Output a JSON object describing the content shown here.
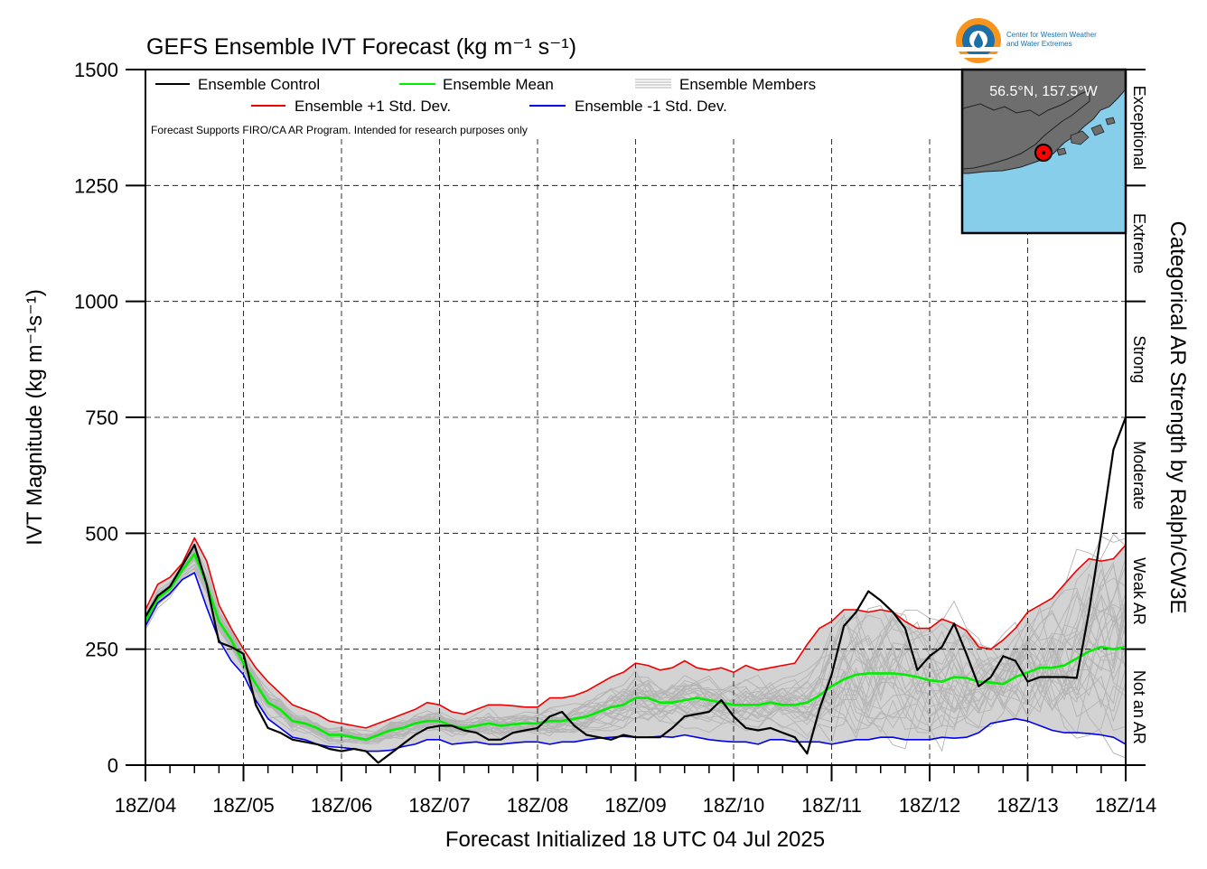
{
  "logo": {
    "line1": "Center for Western Weather",
    "line2": "and Water Extremes"
  },
  "chart_data": {
    "type": "line",
    "title": "GEFS Ensemble IVT Forecast (kg m⁻¹ s⁻¹)",
    "ylabel": "IVT Magnitude (kg m⁻¹s⁻¹)",
    "xlabel": "Forecast Initialized 18 UTC 04 Jul 2025",
    "right_label": "Categorical AR Strength by Ralph/CW3E",
    "disclaimer": "Forecast Supports FIRO/CA AR Program. Intended for research purposes only",
    "inset_label": "56.5°N, 157.5°W",
    "ylim": [
      0,
      1500
    ],
    "xlim": [
      0,
      240
    ],
    "yticks": [
      0,
      250,
      500,
      750,
      1000,
      1250,
      1500
    ],
    "xticks": [
      {
        "x": 0,
        "label": "18Z/04"
      },
      {
        "x": 24,
        "label": "18Z/05"
      },
      {
        "x": 48,
        "label": "18Z/06"
      },
      {
        "x": 72,
        "label": "18Z/07"
      },
      {
        "x": 96,
        "label": "18Z/08"
      },
      {
        "x": 120,
        "label": "18Z/09"
      },
      {
        "x": 144,
        "label": "18Z/10"
      },
      {
        "x": 168,
        "label": "18Z/11"
      },
      {
        "x": 192,
        "label": "18Z/12"
      },
      {
        "x": 216,
        "label": "18Z/13"
      },
      {
        "x": 240,
        "label": "18Z/14"
      }
    ],
    "categories_right": [
      {
        "from": 0,
        "to": 250,
        "label": "Not an AR"
      },
      {
        "from": 250,
        "to": 500,
        "label": "Weak AR"
      },
      {
        "from": 500,
        "to": 750,
        "label": "Moderate"
      },
      {
        "from": 750,
        "to": 1000,
        "label": "Strong"
      },
      {
        "from": 1000,
        "to": 1250,
        "label": "Extreme"
      },
      {
        "from": 1250,
        "to": 1500,
        "label": "Exceptional"
      }
    ],
    "legend": [
      {
        "name": "Ensemble Control",
        "color": "#000000",
        "style": "line"
      },
      {
        "name": "Ensemble Mean",
        "color": "#00ee00",
        "style": "line"
      },
      {
        "name": "Ensemble Members",
        "color": "#b0b0b0",
        "style": "multiline"
      },
      {
        "name": "Ensemble +1 Std. Dev.",
        "color": "#ee0000",
        "style": "line"
      },
      {
        "name": "Ensemble -1 Std. Dev.",
        "color": "#0000ee",
        "style": "line"
      }
    ],
    "x": [
      0,
      3,
      6,
      9,
      12,
      15,
      18,
      21,
      24,
      27,
      30,
      33,
      36,
      39,
      42,
      45,
      48,
      51,
      54,
      57,
      60,
      63,
      66,
      69,
      72,
      75,
      78,
      81,
      84,
      87,
      90,
      93,
      96,
      99,
      102,
      105,
      108,
      111,
      114,
      117,
      120,
      123,
      126,
      129,
      132,
      135,
      138,
      141,
      144,
      147,
      150,
      153,
      156,
      159,
      162,
      165,
      168,
      171,
      174,
      177,
      180,
      183,
      186,
      189,
      192,
      195,
      198,
      201,
      204,
      207,
      210,
      213,
      216,
      219,
      222,
      225,
      228,
      231,
      234,
      237,
      240
    ],
    "series": [
      {
        "name": "Ensemble +1 Std. Dev.",
        "color": "#ee0000",
        "values": [
          335,
          390,
          405,
          435,
          490,
          440,
          345,
          295,
          250,
          210,
          180,
          155,
          130,
          120,
          110,
          95,
          90,
          85,
          80,
          90,
          100,
          110,
          120,
          135,
          130,
          115,
          110,
          120,
          130,
          130,
          128,
          125,
          125,
          145,
          145,
          150,
          160,
          175,
          190,
          200,
          220,
          215,
          205,
          210,
          225,
          210,
          205,
          210,
          200,
          215,
          205,
          210,
          215,
          220,
          260,
          295,
          310,
          335,
          335,
          330,
          335,
          330,
          310,
          295,
          295,
          315,
          305,
          290,
          255,
          250,
          270,
          295,
          330,
          345,
          360,
          390,
          420,
          445,
          440,
          445,
          475
        ]
      },
      {
        "name": "Ensemble Mean",
        "color": "#00ee00",
        "values": [
          310,
          360,
          380,
          420,
          455,
          390,
          310,
          270,
          220,
          175,
          135,
          120,
          95,
          90,
          80,
          65,
          65,
          60,
          55,
          65,
          75,
          80,
          90,
          95,
          95,
          85,
          80,
          85,
          90,
          85,
          88,
          90,
          90,
          95,
          95,
          100,
          105,
          115,
          125,
          130,
          145,
          145,
          135,
          135,
          140,
          145,
          140,
          135,
          130,
          130,
          130,
          135,
          130,
          130,
          135,
          150,
          170,
          185,
          195,
          198,
          198,
          198,
          195,
          190,
          183,
          180,
          190,
          188,
          180,
          178,
          175,
          190,
          200,
          210,
          210,
          215,
          230,
          245,
          255,
          250,
          255
        ]
      },
      {
        "name": "Ensemble -1 Std. Dev.",
        "color": "#0000ee",
        "values": [
          300,
          350,
          370,
          400,
          415,
          340,
          270,
          225,
          195,
          140,
          100,
          80,
          60,
          55,
          45,
          40,
          38,
          35,
          30,
          30,
          32,
          40,
          45,
          55,
          55,
          45,
          48,
          50,
          45,
          45,
          48,
          50,
          50,
          45,
          50,
          50,
          55,
          58,
          60,
          62,
          60,
          60,
          62,
          60,
          65,
          60,
          55,
          52,
          50,
          50,
          45,
          55,
          55,
          50,
          50,
          50,
          45,
          50,
          55,
          55,
          60,
          60,
          55,
          55,
          55,
          60,
          58,
          60,
          70,
          90,
          95,
          100,
          95,
          85,
          75,
          70,
          70,
          68,
          65,
          60,
          45
        ]
      },
      {
        "name": "Ensemble Control",
        "color": "#000000",
        "values": [
          320,
          365,
          385,
          430,
          475,
          390,
          265,
          255,
          240,
          130,
          80,
          70,
          55,
          50,
          45,
          35,
          30,
          35,
          30,
          5,
          25,
          45,
          65,
          80,
          85,
          85,
          75,
          70,
          55,
          55,
          70,
          75,
          80,
          105,
          115,
          85,
          65,
          60,
          55,
          65,
          60,
          60,
          60,
          80,
          105,
          110,
          115,
          140,
          105,
          80,
          75,
          80,
          70,
          60,
          25,
          120,
          195,
          300,
          330,
          375,
          355,
          330,
          295,
          205,
          235,
          255,
          305,
          240,
          170,
          190,
          235,
          225,
          180,
          190,
          190,
          190,
          188,
          330,
          500,
          680,
          750
        ]
      }
    ]
  }
}
